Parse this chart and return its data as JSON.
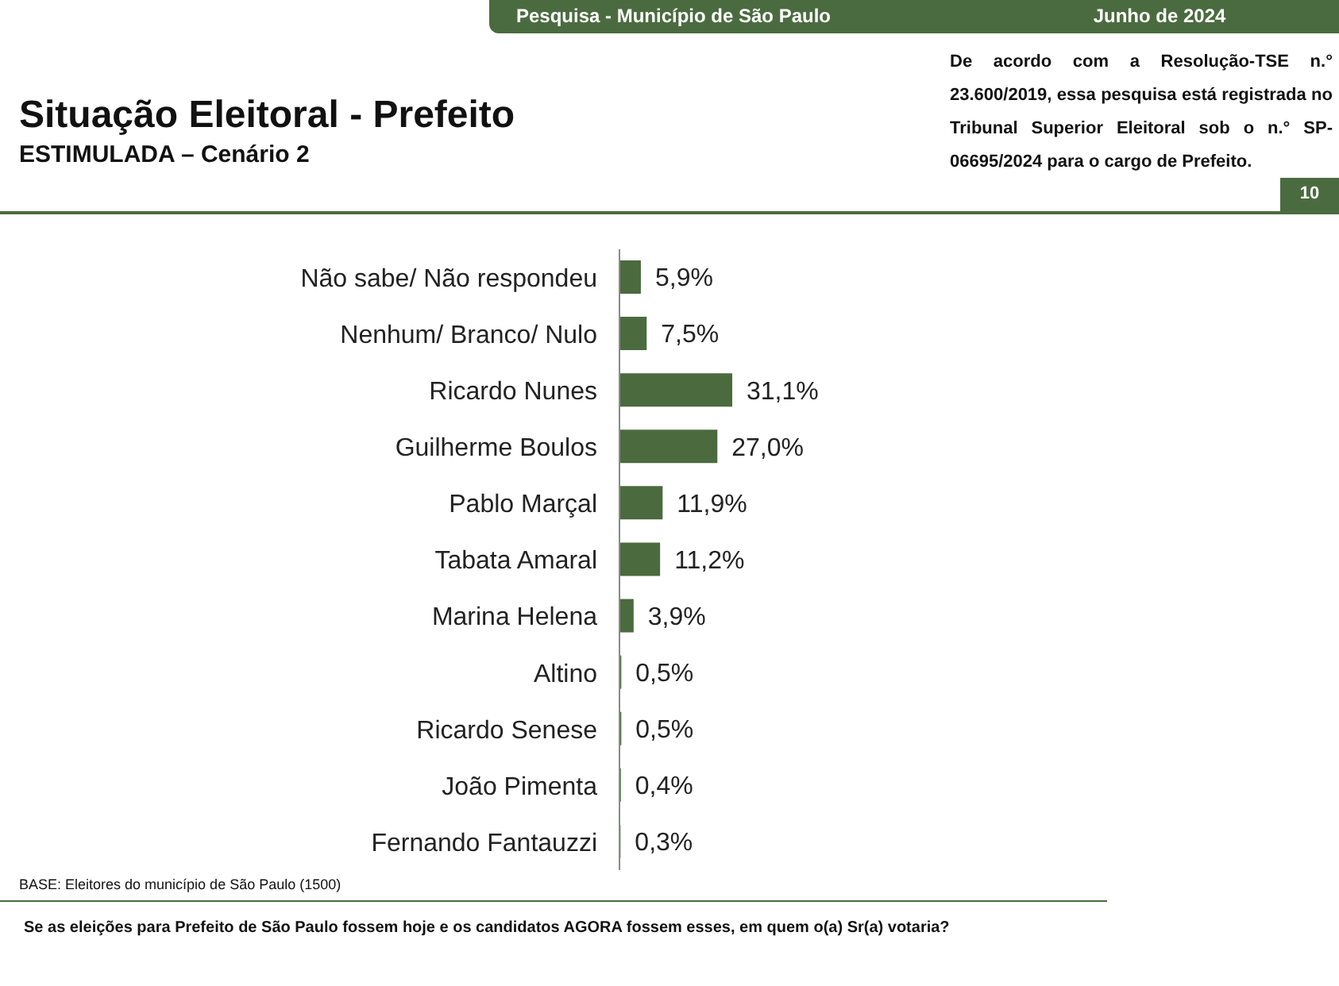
{
  "chart_data": {
    "type": "bar",
    "orientation": "horizontal",
    "title": "Situação Eleitoral - Prefeito",
    "subtitle": "ESTIMULADA – Cenário 2",
    "categories": [
      "Não sabe/ Não respondeu",
      "Nenhum/ Branco/ Nulo",
      "Ricardo Nunes",
      "Guilherme Boulos",
      "Pablo Marçal",
      "Tabata Amaral",
      "Marina Helena",
      "Altino",
      "Ricardo Senese",
      "João Pimenta",
      "Fernando Fantauzzi"
    ],
    "values": [
      5.9,
      7.5,
      31.1,
      27.0,
      11.9,
      11.2,
      3.9,
      0.5,
      0.5,
      0.4,
      0.3
    ],
    "value_labels": [
      "5,9%",
      "7,5%",
      "31,1%",
      "27,0%",
      "11,9%",
      "11,2%",
      "3,9%",
      "0,5%",
      "0,5%",
      "0,4%",
      "0,3%"
    ],
    "color": "#4b6a3e",
    "tick_labels": "y",
    "annotations": [
      "Pesquisa - Município de São Paulo",
      "Junho de 2024",
      "De acordo com a Resolução-TSE n.° 23.600/2019, essa pesquisa está registrada no Tribunal Superior Eleitoral sob o n.° SP-06695/2024 para o cargo de Prefeito.",
      "10",
      "BASE: Eleitores do município de São Paulo (1500)",
      "Se as eleições para Prefeito de São Paulo fossem hoje e os candidatos AGORA fossem esses, em quem o(a) Sr(a) votaria?"
    ]
  }
}
